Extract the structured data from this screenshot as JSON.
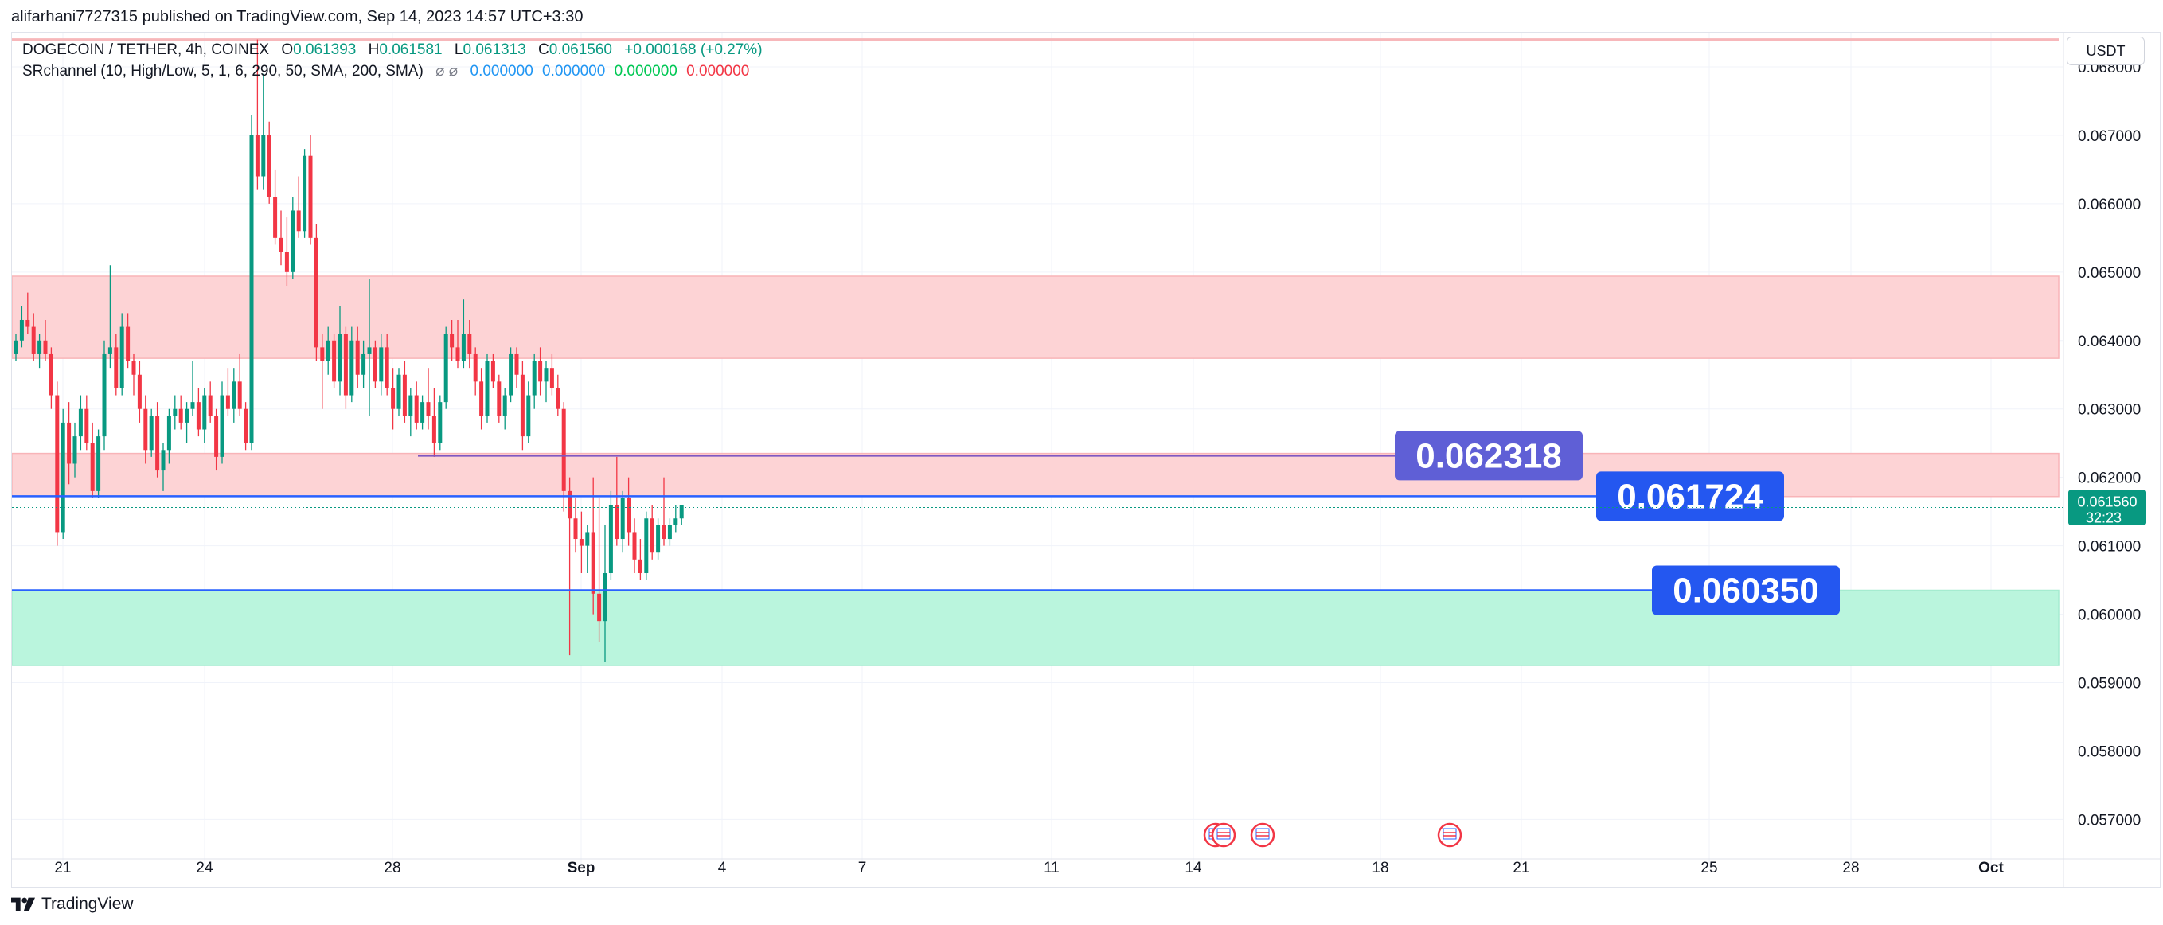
{
  "publisher": "alifarhani7727315 published on TradingView.com, Sep 14, 2023 14:57 UTC+3:30",
  "footer_brand": "TradingView",
  "currency": "USDT",
  "legend": {
    "symbol": "DOGECOIN / TETHER, 4h, COINEX",
    "o_label": "O",
    "o_value": "0.061393",
    "h_label": "H",
    "h_value": "0.061581",
    "l_label": "L",
    "l_value": "0.061313",
    "c_label": "C",
    "c_value": "0.061560",
    "change": "+0.000168 (+0.27%)",
    "indicator": "SRchannel (10, High/Low, 5, 1, 6, 290, 50, SMA, 200, SMA)",
    "indicator_icons": "⌀ ⌀",
    "ind_values": [
      "0.000000",
      "0.000000",
      "0.000000",
      "0.000000"
    ]
  },
  "colors": {
    "up": "#089981",
    "down": "#f23645",
    "resistance_zone": "#fdd3d5",
    "support_zone": "#baf5dd",
    "blue_line": "#2962ff",
    "purple_line": "#7e57c2",
    "grid": "#f0f3fa",
    "price_label": "#089981"
  },
  "chart_data": {
    "type": "candlestick",
    "x_tick_labels": [
      "21",
      "24",
      "28",
      "Sep",
      "4",
      "7",
      "11",
      "14",
      "18",
      "21",
      "25",
      "28",
      "Oct"
    ],
    "y_tick_labels": [
      "0.057000",
      "0.058000",
      "0.059000",
      "0.060000",
      "0.061000",
      "0.062000",
      "0.063000",
      "0.064000",
      "0.065000",
      "0.066000",
      "0.067000",
      "0.068000"
    ],
    "ylim": [
      0.0564,
      0.0685
    ],
    "current_price": "0.061560",
    "countdown": "32:23",
    "zones": [
      {
        "type": "resistance",
        "from": 0.06374,
        "to": 0.06494
      },
      {
        "type": "resistance",
        "from": 0.06172,
        "to": 0.06235
      },
      {
        "type": "support",
        "from": 0.05925,
        "to": 0.06035
      }
    ],
    "horizontal_levels": [
      {
        "value": 0.062318,
        "label": "0.062318",
        "color": "purple"
      },
      {
        "value": 0.061724,
        "label": "0.061724",
        "color": "blue"
      },
      {
        "value": 0.06035,
        "label": "0.060350",
        "color": "blue"
      }
    ],
    "top_line": 0.0684,
    "event_markers": 4,
    "candles": [
      [
        0.0638,
        0.0641,
        0.0637,
        0.064
      ],
      [
        0.064,
        0.0645,
        0.0639,
        0.0643
      ],
      [
        0.0643,
        0.0647,
        0.0641,
        0.0642
      ],
      [
        0.0642,
        0.0644,
        0.0637,
        0.0638
      ],
      [
        0.0638,
        0.0641,
        0.0636,
        0.064
      ],
      [
        0.064,
        0.0643,
        0.0637,
        0.0638
      ],
      [
        0.0638,
        0.0639,
        0.063,
        0.0632
      ],
      [
        0.0632,
        0.0634,
        0.061,
        0.0612
      ],
      [
        0.0612,
        0.063,
        0.0611,
        0.0628
      ],
      [
        0.0628,
        0.0631,
        0.0619,
        0.0622
      ],
      [
        0.0622,
        0.0628,
        0.062,
        0.0626
      ],
      [
        0.0626,
        0.0632,
        0.0624,
        0.063
      ],
      [
        0.063,
        0.0632,
        0.0624,
        0.0625
      ],
      [
        0.0625,
        0.0628,
        0.0617,
        0.0618
      ],
      [
        0.0618,
        0.0627,
        0.0617,
        0.0626
      ],
      [
        0.0626,
        0.064,
        0.0624,
        0.0638
      ],
      [
        0.0638,
        0.0651,
        0.0636,
        0.0639
      ],
      [
        0.0639,
        0.0641,
        0.0632,
        0.0633
      ],
      [
        0.0633,
        0.0644,
        0.0632,
        0.0642
      ],
      [
        0.0642,
        0.0644,
        0.0636,
        0.0637
      ],
      [
        0.0637,
        0.0638,
        0.0632,
        0.0635
      ],
      [
        0.0635,
        0.0637,
        0.0628,
        0.063
      ],
      [
        0.063,
        0.0632,
        0.0622,
        0.0624
      ],
      [
        0.0624,
        0.063,
        0.0623,
        0.0629
      ],
      [
        0.0629,
        0.0631,
        0.062,
        0.0621
      ],
      [
        0.0621,
        0.0625,
        0.0618,
        0.0624
      ],
      [
        0.0624,
        0.063,
        0.0622,
        0.0629
      ],
      [
        0.0629,
        0.0632,
        0.0627,
        0.063
      ],
      [
        0.063,
        0.0632,
        0.0627,
        0.0628
      ],
      [
        0.0628,
        0.0631,
        0.0625,
        0.063
      ],
      [
        0.063,
        0.0637,
        0.0629,
        0.0631
      ],
      [
        0.0631,
        0.0633,
        0.0626,
        0.0627
      ],
      [
        0.0627,
        0.0633,
        0.0625,
        0.0632
      ],
      [
        0.0632,
        0.0634,
        0.0628,
        0.0629
      ],
      [
        0.0629,
        0.063,
        0.0621,
        0.0623
      ],
      [
        0.0623,
        0.0634,
        0.0622,
        0.0632
      ],
      [
        0.0632,
        0.0636,
        0.0629,
        0.063
      ],
      [
        0.063,
        0.0636,
        0.0628,
        0.0634
      ],
      [
        0.0634,
        0.0638,
        0.0629,
        0.063
      ],
      [
        0.063,
        0.0631,
        0.0624,
        0.0625
      ],
      [
        0.0625,
        0.0673,
        0.0624,
        0.067
      ],
      [
        0.067,
        0.0684,
        0.0662,
        0.0664
      ],
      [
        0.0664,
        0.0679,
        0.0662,
        0.067
      ],
      [
        0.067,
        0.0672,
        0.066,
        0.0661
      ],
      [
        0.0661,
        0.0665,
        0.0654,
        0.0655
      ],
      [
        0.0655,
        0.0659,
        0.0651,
        0.0653
      ],
      [
        0.0653,
        0.0658,
        0.0648,
        0.065
      ],
      [
        0.065,
        0.0661,
        0.0649,
        0.0659
      ],
      [
        0.0659,
        0.0664,
        0.0655,
        0.0656
      ],
      [
        0.0656,
        0.0668,
        0.0655,
        0.0667
      ],
      [
        0.0667,
        0.067,
        0.0654,
        0.0655
      ],
      [
        0.0655,
        0.0657,
        0.0637,
        0.0639
      ],
      [
        0.0639,
        0.0641,
        0.063,
        0.0637
      ],
      [
        0.0637,
        0.0642,
        0.0635,
        0.064
      ],
      [
        0.064,
        0.0641,
        0.0633,
        0.0634
      ],
      [
        0.0634,
        0.0645,
        0.0632,
        0.0641
      ],
      [
        0.0641,
        0.0642,
        0.063,
        0.0632
      ],
      [
        0.0632,
        0.0642,
        0.0631,
        0.064
      ],
      [
        0.064,
        0.0642,
        0.0633,
        0.0635
      ],
      [
        0.0635,
        0.064,
        0.0633,
        0.0638
      ],
      [
        0.0638,
        0.0649,
        0.0629,
        0.0639
      ],
      [
        0.0639,
        0.064,
        0.0633,
        0.0634
      ],
      [
        0.0634,
        0.0641,
        0.0632,
        0.0639
      ],
      [
        0.0639,
        0.0641,
        0.0632,
        0.0633
      ],
      [
        0.0633,
        0.0636,
        0.0627,
        0.063
      ],
      [
        0.063,
        0.0636,
        0.0629,
        0.0635
      ],
      [
        0.0635,
        0.0637,
        0.0628,
        0.0629
      ],
      [
        0.0629,
        0.0633,
        0.0626,
        0.0632
      ],
      [
        0.0632,
        0.0634,
        0.0627,
        0.0628
      ],
      [
        0.0628,
        0.0632,
        0.0627,
        0.0631
      ],
      [
        0.0631,
        0.0636,
        0.0627,
        0.0629
      ],
      [
        0.0629,
        0.0633,
        0.0623,
        0.0625
      ],
      [
        0.0625,
        0.0632,
        0.0624,
        0.0631
      ],
      [
        0.0631,
        0.0642,
        0.063,
        0.0641
      ],
      [
        0.0641,
        0.0643,
        0.0637,
        0.0639
      ],
      [
        0.0639,
        0.0643,
        0.0636,
        0.0637
      ],
      [
        0.0637,
        0.0646,
        0.0636,
        0.0641
      ],
      [
        0.0641,
        0.0643,
        0.0636,
        0.0638
      ],
      [
        0.0638,
        0.0639,
        0.0632,
        0.0634
      ],
      [
        0.0634,
        0.0636,
        0.0627,
        0.0629
      ],
      [
        0.0629,
        0.0638,
        0.0628,
        0.0637
      ],
      [
        0.0637,
        0.0638,
        0.0633,
        0.0634
      ],
      [
        0.0634,
        0.0635,
        0.0628,
        0.0629
      ],
      [
        0.0629,
        0.0633,
        0.0627,
        0.0632
      ],
      [
        0.0632,
        0.0639,
        0.0631,
        0.0638
      ],
      [
        0.0638,
        0.0639,
        0.0633,
        0.0635
      ],
      [
        0.0635,
        0.0637,
        0.0624,
        0.0626
      ],
      [
        0.0626,
        0.0634,
        0.0625,
        0.0632
      ],
      [
        0.0632,
        0.0638,
        0.063,
        0.0637
      ],
      [
        0.0637,
        0.0639,
        0.0632,
        0.0634
      ],
      [
        0.0634,
        0.0637,
        0.0631,
        0.0636
      ],
      [
        0.0636,
        0.0638,
        0.0632,
        0.0633
      ],
      [
        0.0633,
        0.0635,
        0.0629,
        0.063
      ],
      [
        0.063,
        0.0631,
        0.0615,
        0.0618
      ],
      [
        0.0618,
        0.062,
        0.0594,
        0.0614
      ],
      [
        0.0614,
        0.0617,
        0.0609,
        0.0611
      ],
      [
        0.0611,
        0.0615,
        0.0606,
        0.061
      ],
      [
        0.061,
        0.0613,
        0.0606,
        0.0612
      ],
      [
        0.0612,
        0.062,
        0.06,
        0.0603
      ],
      [
        0.0603,
        0.0617,
        0.0596,
        0.0599
      ],
      [
        0.0599,
        0.0613,
        0.0593,
        0.0606
      ],
      [
        0.0606,
        0.0618,
        0.0605,
        0.0616
      ],
      [
        0.0616,
        0.0623,
        0.061,
        0.0611
      ],
      [
        0.0611,
        0.0618,
        0.0609,
        0.0617
      ],
      [
        0.0617,
        0.062,
        0.061,
        0.0612
      ],
      [
        0.0612,
        0.0614,
        0.0606,
        0.0608
      ],
      [
        0.0608,
        0.0611,
        0.0605,
        0.0606
      ],
      [
        0.0606,
        0.0615,
        0.0605,
        0.0614
      ],
      [
        0.0614,
        0.0616,
        0.0608,
        0.0609
      ],
      [
        0.0609,
        0.0614,
        0.0608,
        0.0613
      ],
      [
        0.0613,
        0.062,
        0.061,
        0.0611
      ],
      [
        0.0611,
        0.0614,
        0.061,
        0.0613
      ],
      [
        0.0613,
        0.0616,
        0.0612,
        0.0614
      ],
      [
        0.0614,
        0.0616,
        0.0613,
        0.0616
      ]
    ]
  }
}
